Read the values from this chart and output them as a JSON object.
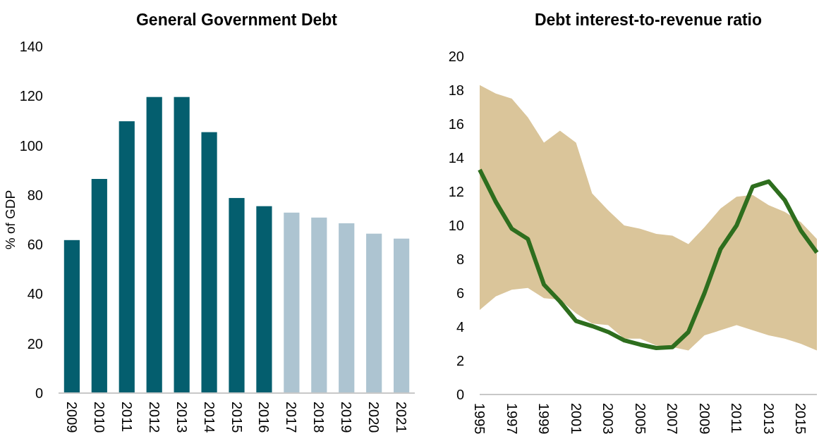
{
  "chart_data": [
    {
      "type": "bar",
      "title": "General Government Debt",
      "ylabel": "% of GDP",
      "categories": [
        "2009",
        "2010",
        "2011",
        "2012",
        "2013",
        "2014",
        "2015",
        "2016",
        "2017",
        "2018",
        "2019",
        "2020",
        "2021"
      ],
      "values": [
        61.8,
        86.5,
        109.8,
        119.6,
        119.6,
        105.4,
        78.8,
        75.5,
        72.9,
        70.9,
        68.6,
        64.4,
        62.4
      ],
      "colors": [
        "#045e6e",
        "#045e6e",
        "#045e6e",
        "#045e6e",
        "#045e6e",
        "#045e6e",
        "#045e6e",
        "#045e6e",
        "#adc4d1",
        "#adc4d1",
        "#adc4d1",
        "#adc4d1",
        "#adc4d1"
      ],
      "ylim": [
        0,
        140
      ],
      "yticks": [
        0,
        20,
        40,
        60,
        80,
        100,
        120,
        140
      ]
    },
    {
      "type": "line",
      "title": "Debt interest-to-revenue ratio",
      "x": [
        1995,
        1996,
        1997,
        1998,
        1999,
        2000,
        2001,
        2002,
        2003,
        2004,
        2005,
        2006,
        2007,
        2008,
        2009,
        2010,
        2011,
        2012,
        2013,
        2014,
        2015,
        2016
      ],
      "series": [
        {
          "color": "#2e6e1e",
          "values": [
            13.3,
            11.4,
            9.8,
            9.2,
            6.5,
            5.5,
            4.35,
            4.05,
            3.7,
            3.2,
            2.95,
            2.75,
            2.8,
            3.7,
            6.0,
            8.6,
            10.0,
            12.3,
            12.6,
            11.5,
            9.7,
            8.4
          ],
          "lower": [
            5.0,
            5.8,
            6.2,
            6.3,
            5.7,
            5.6,
            4.8,
            4.2,
            4.1,
            3.3,
            3.3,
            2.9,
            2.8,
            2.6,
            3.5,
            3.8,
            4.1,
            3.8,
            3.5,
            3.3,
            3.0,
            2.6
          ],
          "upper": [
            18.3,
            17.8,
            17.5,
            16.4,
            14.9,
            15.6,
            14.9,
            11.9,
            10.9,
            10.0,
            9.8,
            9.5,
            9.4,
            8.9,
            9.9,
            11.0,
            11.7,
            11.8,
            11.2,
            10.8,
            10.2,
            9.2
          ]
        }
      ],
      "xlim": [
        1995,
        2016
      ],
      "xticks": [
        1995,
        1997,
        1999,
        2001,
        2003,
        2005,
        2007,
        2009,
        2011,
        2013,
        2015
      ],
      "ylim": [
        0,
        20
      ],
      "yticks": [
        0,
        2,
        4,
        6,
        8,
        10,
        12,
        14,
        16,
        18,
        20
      ]
    }
  ]
}
